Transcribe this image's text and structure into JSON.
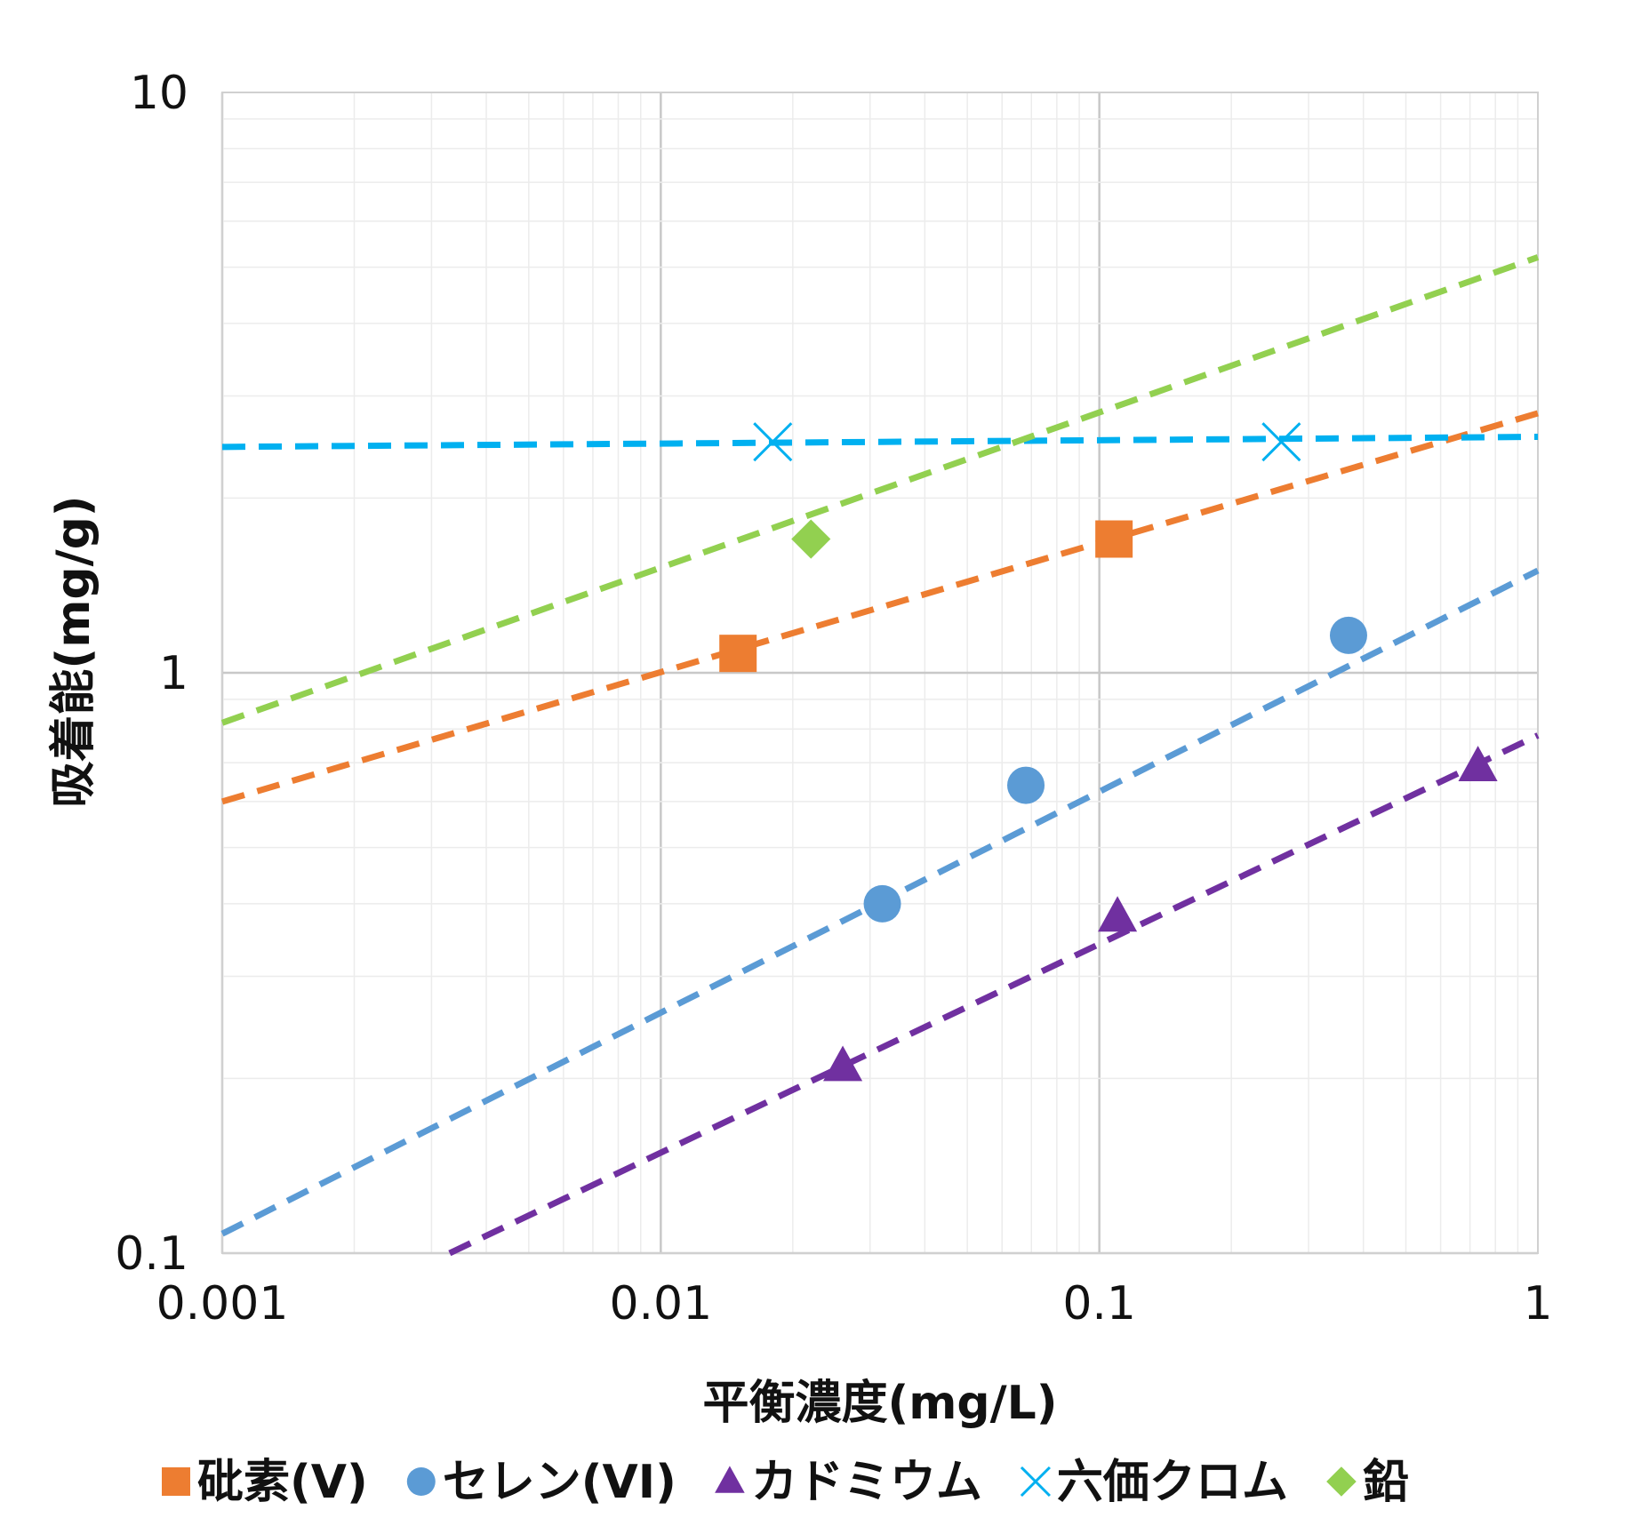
{
  "chart_data": {
    "type": "scatter",
    "title": "",
    "xlabel": "平衡濃度(mg/L)",
    "ylabel": "吸着能(mg/g)",
    "xscale": "log",
    "yscale": "log",
    "xlim": [
      0.001,
      1
    ],
    "ylim": [
      0.1,
      10
    ],
    "x_ticks": [
      "0.001",
      "0.01",
      "0.1",
      "1"
    ],
    "y_ticks": [
      "0.1",
      "1",
      "10"
    ],
    "grid": true,
    "legend_position": "bottom",
    "series": [
      {
        "name": "砒素(V)",
        "marker": "square",
        "color": "#ED7D31",
        "points": [
          [
            0.015,
            1.08
          ],
          [
            0.108,
            1.7
          ]
        ],
        "trendline": {
          "type": "power",
          "x_range": [
            0.001,
            1
          ],
          "y_range": [
            0.6,
            2.8
          ]
        }
      },
      {
        "name": "セレン(VI)",
        "marker": "circle",
        "color": "#5B9BD5",
        "points": [
          [
            0.032,
            0.4
          ],
          [
            0.068,
            0.64
          ],
          [
            0.37,
            1.16
          ]
        ],
        "trendline": {
          "type": "power",
          "x_range": [
            0.001,
            1
          ],
          "y_range": [
            0.108,
            1.5
          ]
        }
      },
      {
        "name": "カドミウム",
        "marker": "triangle",
        "color": "#7030A0",
        "points": [
          [
            0.026,
            0.21
          ],
          [
            0.11,
            0.38
          ],
          [
            0.73,
            0.69
          ]
        ],
        "trendline": {
          "type": "power",
          "x_range": [
            0.0033,
            1
          ],
          "y_range": [
            0.1,
            0.78
          ]
        }
      },
      {
        "name": "六価クロム",
        "marker": "x",
        "color": "#00B0F0",
        "points": [
          [
            0.018,
            2.5
          ],
          [
            0.26,
            2.5
          ]
        ],
        "trendline": {
          "type": "power",
          "x_range": [
            0.001,
            1
          ],
          "y_range": [
            2.45,
            2.55
          ]
        }
      },
      {
        "name": "鉛",
        "marker": "diamond",
        "color": "#92D050",
        "points": [
          [
            0.022,
            1.7
          ]
        ],
        "trendline": {
          "type": "power",
          "x_range": [
            0.001,
            1
          ],
          "y_range": [
            0.82,
            5.2
          ]
        }
      }
    ]
  }
}
